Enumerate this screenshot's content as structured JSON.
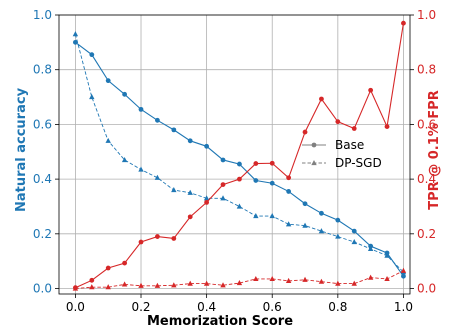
{
  "chart_data": {
    "type": "line",
    "xlabel": "Memorization Score",
    "ylabel_left": "Natural accuracy",
    "ylabel_right": "TPR @ 0.1% FPR",
    "xlim": [
      -0.05,
      1.02
    ],
    "ylim_left": [
      -0.02,
      1.0
    ],
    "ylim_right": [
      -0.02,
      1.0
    ],
    "xticks": [
      0.0,
      0.2,
      0.4,
      0.6,
      0.8,
      1.0
    ],
    "xtick_labels": [
      "0.0",
      "0.2",
      "0.4",
      "0.6",
      "0.8",
      "1.0"
    ],
    "yticks_left": [
      0.0,
      0.2,
      0.4,
      0.6,
      0.8,
      1.0
    ],
    "ytick_labels_left": [
      "0.0",
      "0.2",
      "0.4",
      "0.6",
      "0.8",
      "1.0"
    ],
    "yticks_right": [
      0.0,
      0.2,
      0.4,
      0.6,
      0.8,
      1.0
    ],
    "ytick_labels_right": [
      "0.0",
      "0.2",
      "0.4",
      "0.6",
      "0.8",
      "1.0"
    ],
    "grid": true,
    "legend_position": "center-right",
    "legend": [
      {
        "label": "Base",
        "style": "solid",
        "marker": "circle"
      },
      {
        "label": "DP-SGD",
        "style": "dashed",
        "marker": "triangle"
      }
    ],
    "x": [
      0.0,
      0.05,
      0.1,
      0.15,
      0.2,
      0.25,
      0.3,
      0.35,
      0.4,
      0.45,
      0.5,
      0.55,
      0.6,
      0.65,
      0.7,
      0.75,
      0.8,
      0.85,
      0.9,
      0.95,
      1.0
    ],
    "series": [
      {
        "axis": "left",
        "style": "solid",
        "marker": "circle",
        "color": "#1f77b4",
        "values": [
          0.9,
          0.855,
          0.76,
          0.71,
          0.655,
          0.615,
          0.58,
          0.54,
          0.52,
          0.47,
          0.455,
          0.395,
          0.385,
          0.355,
          0.31,
          0.275,
          0.25,
          0.21,
          0.155,
          0.13,
          0.045
        ]
      },
      {
        "axis": "left",
        "style": "dashed",
        "marker": "triangle",
        "color": "#1f77b4",
        "values": [
          0.93,
          0.7,
          0.54,
          0.47,
          0.435,
          0.405,
          0.36,
          0.35,
          0.33,
          0.33,
          0.3,
          0.265,
          0.265,
          0.235,
          0.23,
          0.21,
          0.19,
          0.17,
          0.145,
          0.12,
          0.06
        ]
      },
      {
        "axis": "right",
        "style": "solid",
        "marker": "circle",
        "color": "#d62728",
        "values": [
          0.003,
          0.03,
          0.075,
          0.093,
          0.17,
          0.19,
          0.183,
          0.262,
          0.315,
          0.38,
          0.4,
          0.457,
          0.458,
          0.405,
          0.572,
          0.693,
          0.61,
          0.585,
          0.725,
          0.592,
          0.97
        ]
      },
      {
        "axis": "right",
        "style": "dashed",
        "marker": "triangle",
        "color": "#d62728",
        "values": [
          0.0,
          0.005,
          0.005,
          0.015,
          0.01,
          0.01,
          0.012,
          0.018,
          0.018,
          0.012,
          0.02,
          0.035,
          0.035,
          0.028,
          0.032,
          0.025,
          0.018,
          0.018,
          0.04,
          0.035,
          0.065
        ]
      }
    ],
    "colors": {
      "left_axis": "#1f77b4",
      "right_axis": "#d62728",
      "grid": "#b0b0b0",
      "legend_line": "#808080"
    }
  }
}
